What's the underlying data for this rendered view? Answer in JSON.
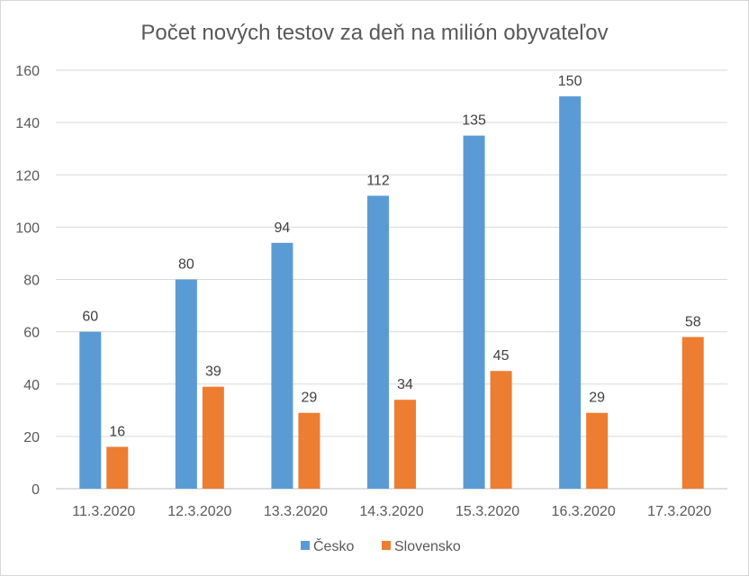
{
  "chart_data": {
    "type": "bar",
    "title": "Počet nových testov za deň na milión obyvateľov",
    "categories": [
      "11.3.2020",
      "12.3.2020",
      "13.3.2020",
      "14.3.2020",
      "15.3.2020",
      "16.3.2020",
      "17.3.2020"
    ],
    "series": [
      {
        "name": "Česko",
        "color": "#5b9bd5",
        "values": [
          60,
          80,
          94,
          112,
          135,
          150,
          null
        ]
      },
      {
        "name": "Slovensko",
        "color": "#ed7d31",
        "values": [
          16,
          39,
          29,
          34,
          45,
          29,
          58
        ]
      }
    ],
    "ylim": [
      0,
      160
    ],
    "yticks": [
      0,
      20,
      40,
      60,
      80,
      100,
      120,
      140,
      160
    ],
    "grid": true,
    "legend": "bottom",
    "xlabel": "",
    "ylabel": ""
  }
}
